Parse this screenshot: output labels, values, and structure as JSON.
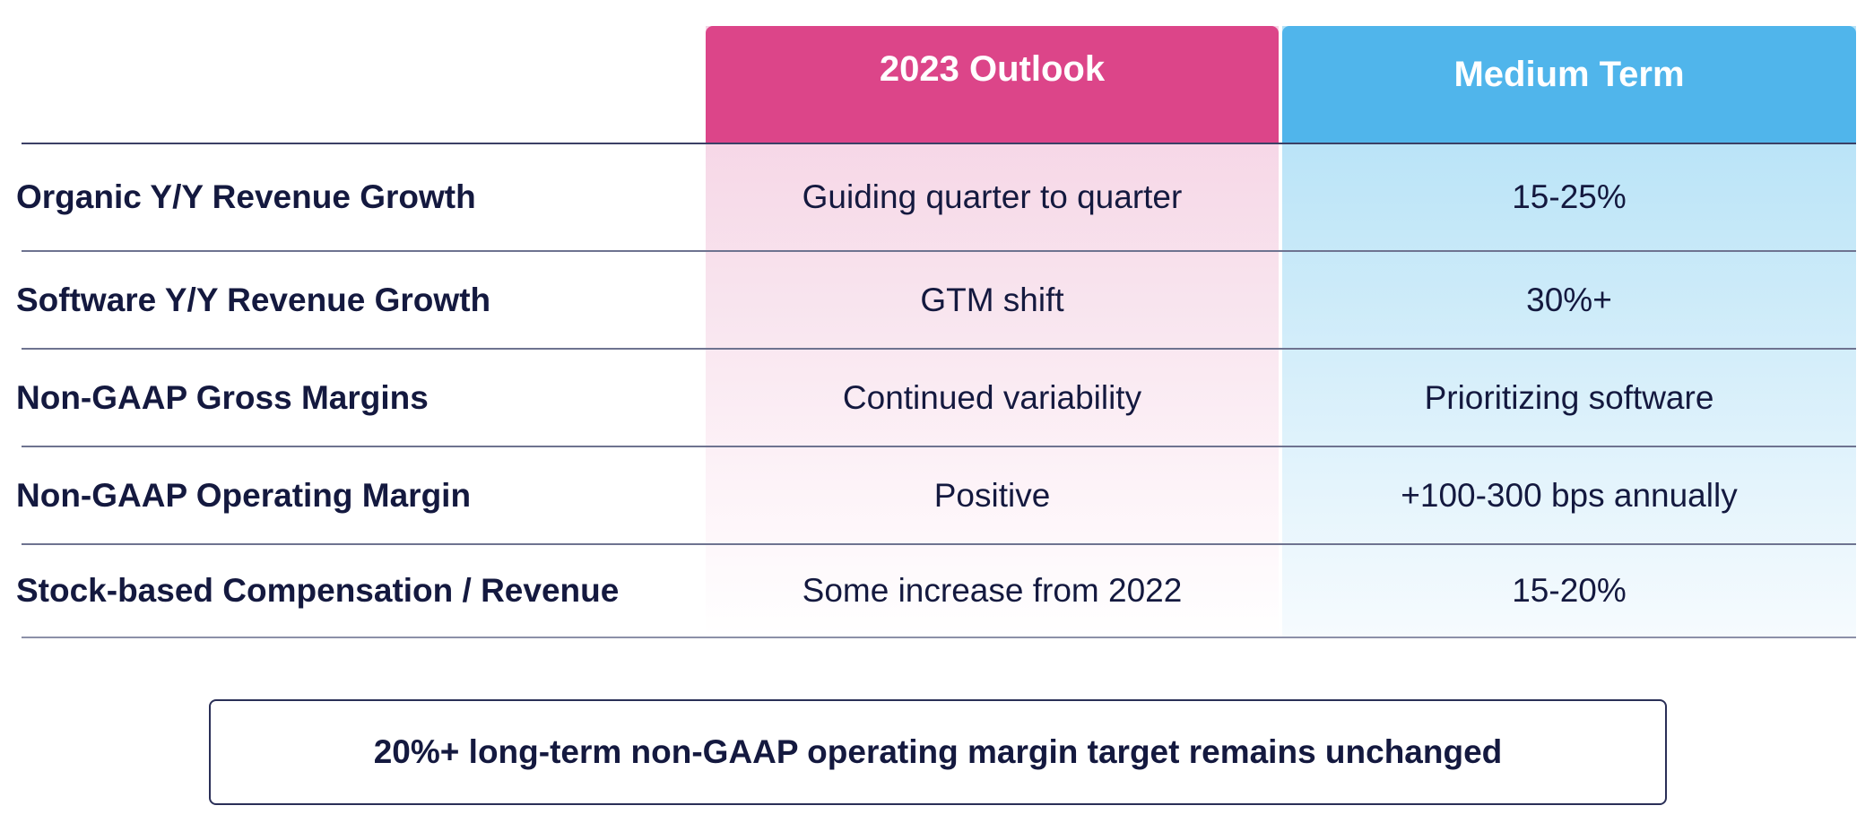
{
  "table": {
    "headers": {
      "outlook": "2023 Outlook",
      "medium": "Medium Term"
    },
    "rows": [
      {
        "label": "Organic Y/Y Revenue Growth",
        "outlook": "Guiding quarter to quarter",
        "medium": "15-25%"
      },
      {
        "label": "Software Y/Y Revenue Growth",
        "outlook": "GTM shift",
        "medium": "30%+"
      },
      {
        "label": "Non-GAAP Gross Margins",
        "outlook": "Continued variability",
        "medium": "Prioritizing software"
      },
      {
        "label": "Non-GAAP Operating Margin",
        "outlook": "Positive",
        "medium": "+100-300 bps annually"
      },
      {
        "label": "Stock-based Compensation / Revenue",
        "outlook": "Some increase from 2022",
        "medium": "15-20%"
      }
    ]
  },
  "footer": {
    "text": "20%+ long-term non-GAAP operating margin target remains unchanged"
  },
  "colors": {
    "outlook_header": "#dc4589",
    "medium_header": "#50b5eb",
    "text": "#14193f"
  }
}
